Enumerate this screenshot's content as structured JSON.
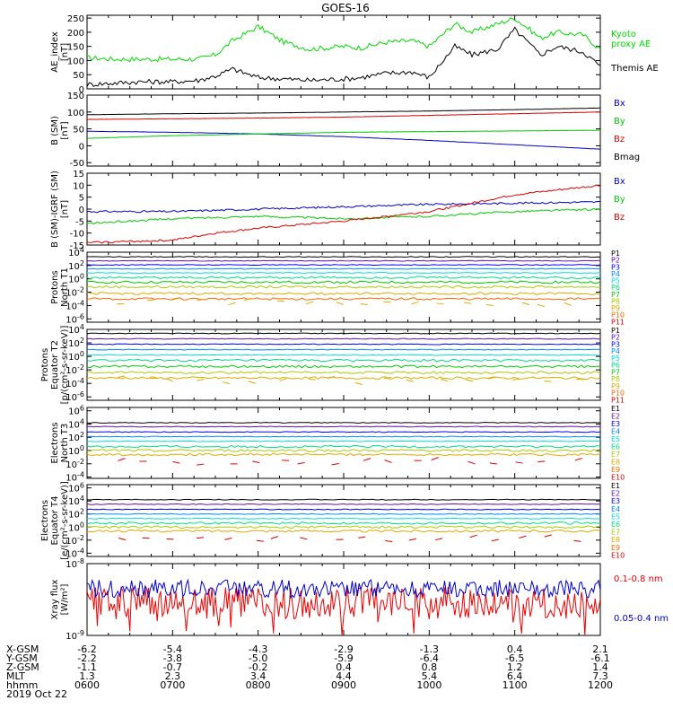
{
  "chart_data": {
    "type": "line",
    "title": "GOES-16",
    "date_label": "2019 Oct 22",
    "x_ticks": [
      "0600",
      "0700",
      "0800",
      "0900",
      "1000",
      "1100",
      "1200"
    ],
    "panels": [
      {
        "id": "ae",
        "ylabel": [
          "AE_index",
          "[nT]"
        ],
        "yticks": [
          "250",
          "200",
          "150",
          "100",
          "50",
          "0"
        ],
        "ylim": [
          0,
          260
        ],
        "series": [
          {
            "name": "Kyoto proxy AE",
            "color": "#00dd00",
            "x": [
              6.0,
              6.3,
              6.6,
              7.0,
              7.3,
              7.5,
              7.7,
              8.0,
              8.3,
              8.6,
              9.0,
              9.2,
              9.5,
              9.8,
              10.0,
              10.3,
              10.5,
              10.8,
              11.0,
              11.3,
              11.5,
              11.8,
              12.0
            ],
            "y": [
              110,
              105,
              105,
              105,
              105,
              120,
              170,
              220,
              165,
              140,
              150,
              145,
              165,
              170,
              150,
              230,
              200,
              230,
              250,
              180,
              200,
              190,
              140
            ]
          },
          {
            "name": "Themis AE",
            "color": "#000000",
            "x": [
              6.0,
              6.3,
              6.6,
              7.0,
              7.3,
              7.5,
              7.7,
              8.0,
              8.3,
              8.6,
              9.0,
              9.2,
              9.5,
              9.8,
              10.0,
              10.3,
              10.5,
              10.8,
              11.0,
              11.3,
              11.5,
              11.8,
              12.0
            ],
            "y": [
              15,
              20,
              25,
              25,
              30,
              45,
              70,
              40,
              35,
              30,
              35,
              40,
              55,
              60,
              40,
              150,
              120,
              140,
              210,
              120,
              150,
              130,
              80
            ]
          }
        ]
      },
      {
        "id": "bsm",
        "ylabel": [
          "B (SM)",
          "[nT]"
        ],
        "yticks": [
          "150",
          "100",
          "50",
          "0",
          "-50"
        ],
        "ylim": [
          -60,
          150
        ],
        "series": [
          {
            "name": "Bx",
            "color": "#0000cc",
            "x": [
              6,
              7,
              8,
              9,
              10,
              11,
              12
            ],
            "y": [
              43,
              40,
              35,
              27,
              16,
              3,
              -10
            ]
          },
          {
            "name": "By",
            "color": "#00cc00",
            "x": [
              6,
              7,
              8,
              9,
              10,
              11,
              12
            ],
            "y": [
              22,
              30,
              35,
              40,
              42,
              44,
              46
            ]
          },
          {
            "name": "Bz",
            "color": "#dd0000",
            "x": [
              6,
              7,
              8,
              9,
              10,
              11,
              12
            ],
            "y": [
              78,
              80,
              82,
              85,
              90,
              95,
              100
            ]
          },
          {
            "name": "Bmag",
            "color": "#000000",
            "x": [
              6,
              7,
              8,
              9,
              10,
              11,
              12
            ],
            "y": [
              92,
              95,
              97,
              100,
              103,
              107,
              112
            ]
          }
        ]
      },
      {
        "id": "dbsm",
        "ylabel": [
          "B (SM)-IGRF (SM)",
          "[nT]"
        ],
        "yticks": [
          "15",
          "10",
          "5",
          "0",
          "-5",
          "-10",
          "-15"
        ],
        "ylim": [
          -15,
          15
        ],
        "series": [
          {
            "name": "Bx",
            "color": "#0000cc",
            "x": [
              6,
              7,
              8,
              9,
              10,
              11,
              12
            ],
            "y": [
              -1,
              -1,
              0,
              1,
              2,
              2.5,
              3
            ]
          },
          {
            "name": "By",
            "color": "#00cc00",
            "x": [
              6,
              7,
              8,
              9,
              10,
              11,
              12
            ],
            "y": [
              -6,
              -4,
              -3,
              -4,
              -3,
              -1,
              0
            ]
          },
          {
            "name": "Bz",
            "color": "#dd0000",
            "x": [
              6,
              7,
              7.5,
              8,
              9,
              10,
              11,
              12
            ],
            "y": [
              -14,
              -13,
              -10,
              -8,
              -5,
              -1,
              6,
              10
            ]
          }
        ]
      },
      {
        "id": "pn",
        "ylabel": [
          "Protons",
          "North T1"
        ],
        "yticks": [
          "10^4",
          "10^2",
          "10^0",
          "10^-2",
          "10^-4",
          "10^-6"
        ],
        "ylim_log10": [
          -6.5,
          4
        ],
        "labels": [
          "P1",
          "P2",
          "P3",
          "P4",
          "P5",
          "P6",
          "P7",
          "P8",
          "P9",
          "P10",
          "P11"
        ],
        "levels_log10": [
          3.3,
          2.7,
          2.1,
          1.5,
          0.9,
          0.2,
          -0.5,
          -1.2,
          -2.2,
          -3.0
        ],
        "colors": [
          "#000000",
          "#6a0dad",
          "#0000ff",
          "#0088ff",
          "#00dddd",
          "#00dd88",
          "#00cc00",
          "#aacc00",
          "#ddaa00",
          "#ff6600",
          "#dd0000"
        ]
      },
      {
        "id": "pe",
        "ylabel": [
          "Protons",
          "Equator T2",
          "[p/(cm²-s-sr-keV)]"
        ],
        "yticks": [
          "10^4",
          "10^2",
          "10^0",
          "10^-2",
          "10^-4",
          "10^-6"
        ],
        "ylim_log10": [
          -6.5,
          4
        ],
        "labels": [
          "P1",
          "P2",
          "P3",
          "P4",
          "P5",
          "P6",
          "P7",
          "P8",
          "P9",
          "P10",
          "P11"
        ],
        "levels_log10": [
          3.4,
          2.6,
          1.8,
          1.0,
          0.2,
          -0.6,
          -1.5,
          -2.4,
          -3.2
        ],
        "colors": [
          "#000000",
          "#6a0dad",
          "#0000ff",
          "#0088ff",
          "#00dddd",
          "#00dd88",
          "#00cc00",
          "#aacc00",
          "#ddaa00",
          "#ff6600",
          "#dd0000"
        ]
      },
      {
        "id": "en",
        "ylabel": [
          "Electrons",
          "North T3"
        ],
        "yticks": [
          "10^6",
          "10^4",
          "10^2",
          "10^0",
          "10^-2",
          "10^-4"
        ],
        "ylim_log10": [
          -4.2,
          6.5
        ],
        "labels": [
          "E1",
          "E2",
          "E3",
          "E4",
          "E5",
          "E6",
          "E7",
          "E8",
          "E9",
          "E10"
        ],
        "levels_log10": [
          4.2,
          3.6,
          2.8,
          2.1,
          1.4,
          0.6,
          0.0,
          -0.6
        ],
        "colors": [
          "#000000",
          "#6a0dad",
          "#0000ff",
          "#0088ff",
          "#00dddd",
          "#00dd88",
          "#aacc00",
          "#ddaa00",
          "#ff6600",
          "#dd0000"
        ]
      },
      {
        "id": "ee",
        "ylabel": [
          "Electrons",
          "Equator T4",
          "[e/(cm²-s-sr-keV)]"
        ],
        "yticks": [
          "10^6",
          "10^4",
          "10^2",
          "10^0",
          "10^-2",
          "10^-4"
        ],
        "ylim_log10": [
          -4.5,
          6.5
        ],
        "labels": [
          "E1",
          "E2",
          "E3",
          "E4",
          "E5",
          "E6",
          "E7",
          "E8",
          "E9",
          "E10"
        ],
        "levels_log10": [
          4.2,
          3.5,
          2.7,
          2.0,
          1.3,
          0.6,
          0.0,
          -0.6
        ],
        "colors": [
          "#000000",
          "#6a0dad",
          "#0000ff",
          "#0088ff",
          "#00dddd",
          "#00dd88",
          "#aacc00",
          "#ddaa00",
          "#ff6600",
          "#dd0000"
        ]
      },
      {
        "id": "xray",
        "ylabel": [
          "Xray flux",
          "[W/m²]"
        ],
        "yticks": [
          "10^-8",
          "10^-9"
        ],
        "ylim_log10": [
          -9,
          -8
        ],
        "series": [
          {
            "name": "0.1-0.8 nm",
            "color": "#ee0000"
          },
          {
            "name": "0.05-0.4 nm",
            "color": "#0000cc"
          }
        ]
      }
    ],
    "ephemeris": {
      "rows": [
        "X-GSM",
        "Y-GSM",
        "Z-GSM",
        "MLT",
        "hhmm"
      ],
      "values": [
        [
          "-6.2",
          "-5.4",
          "-4.3",
          "-2.9",
          "-1.3",
          "0.4",
          "2.1"
        ],
        [
          "-2.2",
          "-3.8",
          "-5.0",
          "-5.9",
          "-6.4",
          "-6.5",
          "-6.1"
        ],
        [
          "-1.1",
          "-0.7",
          "-0.2",
          "0.4",
          "0.8",
          "1.2",
          "1.4"
        ],
        [
          "1.3",
          "2.3",
          "3.4",
          "4.4",
          "5.4",
          "6.4",
          "7.3"
        ],
        [
          "0600",
          "0700",
          "0800",
          "0900",
          "1000",
          "1100",
          "1200"
        ]
      ]
    }
  }
}
